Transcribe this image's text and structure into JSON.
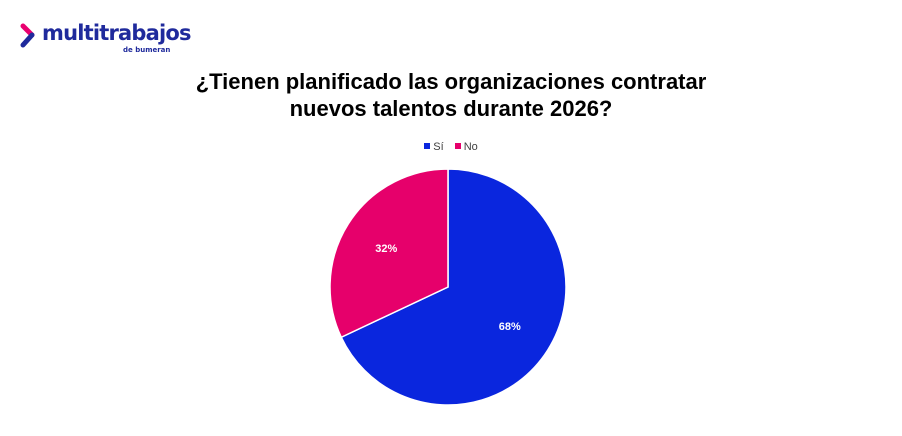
{
  "logo": {
    "brand": "multitrabajos",
    "sub": "de bumeran",
    "colors": {
      "arrow_top": "#e9006f",
      "arrow_bottom": "#1f2a9c",
      "text": "#1f2a9c"
    }
  },
  "chart_data": {
    "type": "pie",
    "title_lines": [
      "¿Tienen planificado las organizaciones contratar",
      "nuevos talentos durante 2026?"
    ],
    "categories": [
      "Sí",
      "No"
    ],
    "values": [
      68,
      32
    ],
    "data_labels": [
      "68%",
      "32%"
    ],
    "colors": [
      "#0a26de",
      "#e6006b"
    ],
    "legend_position": "top",
    "start_angle": "12 o'clock, clockwise"
  }
}
